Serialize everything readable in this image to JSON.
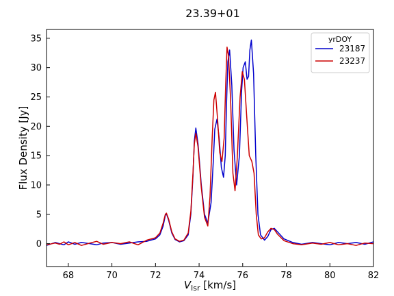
{
  "chart_data": {
    "type": "line",
    "title": "23.39+01",
    "xlabel_main": "V",
    "xlabel_sub": "lsr",
    "xlabel_unit": " [km/s]",
    "ylabel": "Flux Density [Jy]",
    "xlim": [
      67,
      82
    ],
    "ylim": [
      -3.9,
      36.5
    ],
    "xticks": [
      68,
      70,
      72,
      74,
      76,
      78,
      80,
      82
    ],
    "yticks": [
      0,
      5,
      10,
      15,
      20,
      25,
      30,
      35
    ],
    "legend": {
      "title": "yrDOY",
      "placement": "top-right"
    },
    "series": [
      {
        "name": "23187",
        "color": "#0000cc",
        "x": [
          67.0,
          67.4,
          67.6,
          67.8,
          68.0,
          68.3,
          68.6,
          69.0,
          69.3,
          69.6,
          70.0,
          70.4,
          70.8,
          71.2,
          71.6,
          72.0,
          72.2,
          72.35,
          72.45,
          72.5,
          72.6,
          72.75,
          72.9,
          73.1,
          73.3,
          73.5,
          73.62,
          73.72,
          73.78,
          73.85,
          73.95,
          74.1,
          74.25,
          74.4,
          74.55,
          74.65,
          74.72,
          74.82,
          74.92,
          75.02,
          75.12,
          75.2,
          75.26,
          75.32,
          75.4,
          75.5,
          75.6,
          75.72,
          75.85,
          75.95,
          76.02,
          76.12,
          76.2,
          76.27,
          76.33,
          76.4,
          76.5,
          76.6,
          76.7,
          76.82,
          77.0,
          77.15,
          77.3,
          77.45,
          77.6,
          77.9,
          78.3,
          78.7,
          79.2,
          79.6,
          80.0,
          80.4,
          80.8,
          81.2,
          81.6,
          82.0
        ],
        "y": [
          -0.3,
          0.2,
          0.0,
          -0.2,
          0.3,
          -0.1,
          0.2,
          0.0,
          -0.2,
          0.1,
          0.2,
          -0.1,
          0.1,
          0.3,
          0.4,
          0.8,
          1.5,
          3.0,
          4.8,
          5.1,
          4.0,
          1.8,
          0.7,
          0.3,
          0.5,
          1.5,
          5.0,
          11.5,
          17.5,
          19.7,
          17.0,
          10.0,
          5.0,
          3.5,
          7.0,
          14.0,
          19.5,
          21.2,
          18.0,
          13.0,
          11.3,
          15.0,
          24.0,
          31.0,
          33.0,
          27.0,
          16.0,
          10.0,
          15.0,
          26.0,
          30.0,
          31.0,
          28.0,
          28.5,
          33.0,
          34.7,
          29.0,
          15.0,
          5.0,
          1.5,
          0.6,
          1.2,
          2.4,
          2.6,
          2.0,
          0.8,
          0.2,
          -0.1,
          0.2,
          0.0,
          -0.2,
          0.2,
          0.0,
          0.2,
          -0.1,
          0.3
        ]
      },
      {
        "name": "23237",
        "color": "#cc0000",
        "x": [
          67.0,
          67.4,
          67.6,
          67.8,
          68.0,
          68.3,
          68.6,
          69.0,
          69.3,
          69.6,
          70.0,
          70.4,
          70.8,
          71.2,
          71.6,
          72.0,
          72.2,
          72.35,
          72.45,
          72.5,
          72.6,
          72.75,
          72.9,
          73.1,
          73.3,
          73.5,
          73.62,
          73.72,
          73.78,
          73.85,
          73.95,
          74.1,
          74.25,
          74.4,
          74.5,
          74.6,
          74.68,
          74.75,
          74.85,
          74.95,
          75.05,
          75.15,
          75.22,
          75.28,
          75.35,
          75.45,
          75.55,
          75.65,
          75.75,
          75.88,
          75.98,
          76.08,
          76.18,
          76.3,
          76.42,
          76.52,
          76.62,
          76.72,
          76.85,
          77.0,
          77.15,
          77.3,
          77.45,
          77.6,
          77.9,
          78.3,
          78.7,
          79.2,
          79.6,
          80.0,
          80.4,
          80.8,
          81.2,
          81.6,
          82.0
        ],
        "y": [
          -0.2,
          0.1,
          -0.1,
          0.3,
          -0.2,
          0.2,
          -0.3,
          0.1,
          0.4,
          -0.1,
          0.2,
          0.0,
          0.3,
          -0.2,
          0.6,
          1.0,
          1.8,
          3.5,
          5.0,
          5.2,
          4.2,
          2.0,
          0.8,
          0.4,
          0.6,
          1.8,
          5.5,
          12.0,
          17.0,
          18.8,
          16.5,
          9.5,
          4.5,
          3.0,
          8.0,
          18.0,
          24.5,
          25.8,
          21.0,
          15.5,
          14.0,
          18.0,
          27.0,
          33.5,
          32.0,
          24.0,
          12.0,
          9.0,
          14.5,
          25.0,
          29.3,
          28.0,
          22.0,
          15.0,
          14.0,
          12.0,
          5.0,
          1.5,
          0.8,
          1.0,
          2.0,
          2.6,
          2.4,
          1.6,
          0.5,
          0.0,
          -0.2,
          0.1,
          -0.1,
          0.2,
          -0.2,
          0.0,
          -0.3,
          0.1,
          0.0
        ]
      }
    ]
  }
}
